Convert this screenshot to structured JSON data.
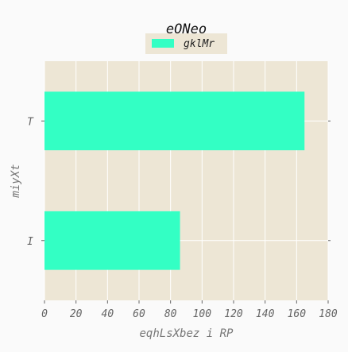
{
  "chart_data": {
    "type": "bar",
    "orientation": "horizontal",
    "title": "eONeo",
    "xlabel": "eqhLsXbez i RP",
    "ylabel": "miyXt",
    "categories": [
      "T",
      "I"
    ],
    "series": [
      {
        "name": "gklMr",
        "values": [
          165,
          86
        ]
      }
    ],
    "xlim": [
      0,
      180
    ],
    "xticks": [
      0,
      20,
      40,
      60,
      80,
      100,
      120,
      140,
      160,
      180
    ],
    "grid": true,
    "legend_position": "top-center",
    "colors": {
      "bar": "#33ffc4",
      "plot_background": "#ede6d5",
      "grid": "#ffffff",
      "page_background": "#fafafa"
    }
  }
}
